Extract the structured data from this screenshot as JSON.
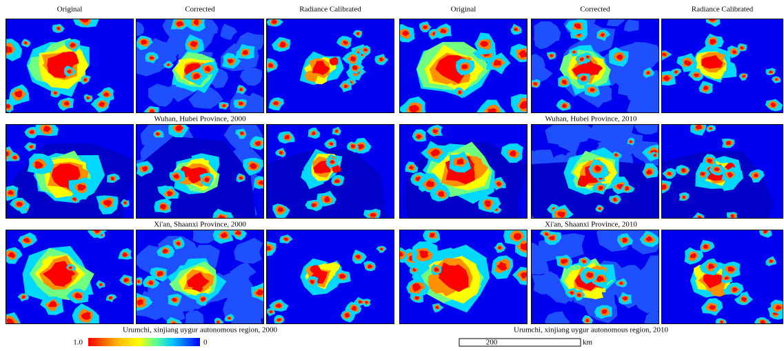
{
  "figure": {
    "groups": [
      {
        "headers": [
          "Original",
          "Corrected",
          "Radiance Calibrated"
        ],
        "captions": [
          "Wuhan, Hubei Province, 2000",
          "Xi'an, Shaanxi Province, 2000",
          "Urumchi, xinjiang uygur autonomous region, 2000"
        ]
      },
      {
        "headers": [
          "Original",
          "Corrected",
          "Radiance Calibrated"
        ],
        "captions": [
          "Wuhan, Hubei Province, 2010",
          "Xi'an, Shaanxi Province, 2010",
          "Urumchi, xinjiang uygur autonomous region, 2010"
        ]
      }
    ],
    "colorbar": {
      "max_label": "1.0",
      "min_label": "0"
    },
    "scale_bar": {
      "label": "200",
      "unit": "km"
    }
  }
}
